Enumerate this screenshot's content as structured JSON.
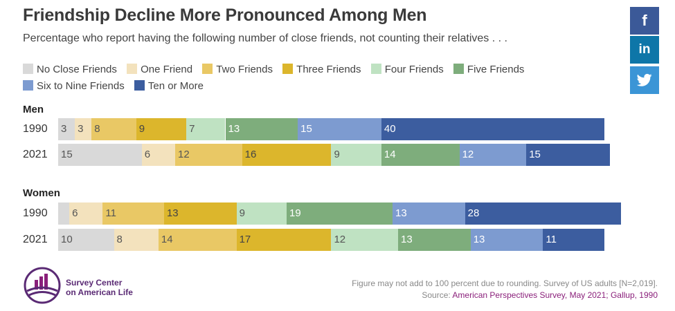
{
  "chart_data": {
    "type": "bar",
    "stacked": true,
    "orientation": "horizontal",
    "title": "Friendship Decline More Pronounced Among Men",
    "subtitle": "Percentage who report having the following number of close friends, not counting their relatives . . .",
    "legend": [
      {
        "name": "No Close Friends",
        "color": "#d9d9d9",
        "text_color": "#555555"
      },
      {
        "name": "One Friend",
        "color": "#f3e2bd",
        "text_color": "#555555"
      },
      {
        "name": "Two Friends",
        "color": "#e9c865",
        "text_color": "#555555"
      },
      {
        "name": "Three Friends",
        "color": "#dcb62c",
        "text_color": "#444444"
      },
      {
        "name": "Four Friends",
        "color": "#bfe2c2",
        "text_color": "#555555"
      },
      {
        "name": "Five Friends",
        "color": "#7ead7c",
        "text_color": "#ffffff"
      },
      {
        "name": "Six to Nine Friends",
        "color": "#7d9bd0",
        "text_color": "#ffffff"
      },
      {
        "name": "Ten or More",
        "color": "#3c5d9f",
        "text_color": "#ffffff"
      }
    ],
    "groups": [
      {
        "label": "Men",
        "rows": [
          {
            "year": "1990",
            "values": [
              3,
              3,
              8,
              9,
              7,
              13,
              15,
              40
            ]
          },
          {
            "year": "2021",
            "values": [
              15,
              6,
              12,
              16,
              9,
              14,
              12,
              15
            ]
          }
        ]
      },
      {
        "label": "Women",
        "rows": [
          {
            "year": "1990",
            "values": [
              2,
              6,
              11,
              13,
              9,
              19,
              13,
              28
            ],
            "hidden_labels": [
              0
            ]
          },
          {
            "year": "2021",
            "values": [
              10,
              8,
              14,
              17,
              12,
              13,
              13,
              11
            ]
          }
        ]
      }
    ]
  },
  "social": {
    "facebook": "f",
    "linkedin": "in"
  },
  "logo": {
    "line1": "Survey Center",
    "line2": "on American Life"
  },
  "footnote": {
    "line1": "Figure may not add to 100 percent due to rounding. Survey of US adults [N=2,019].",
    "source_prefix": "Source: ",
    "source": "American Perspectives Survey, May 2021; Gallup, 1990"
  }
}
